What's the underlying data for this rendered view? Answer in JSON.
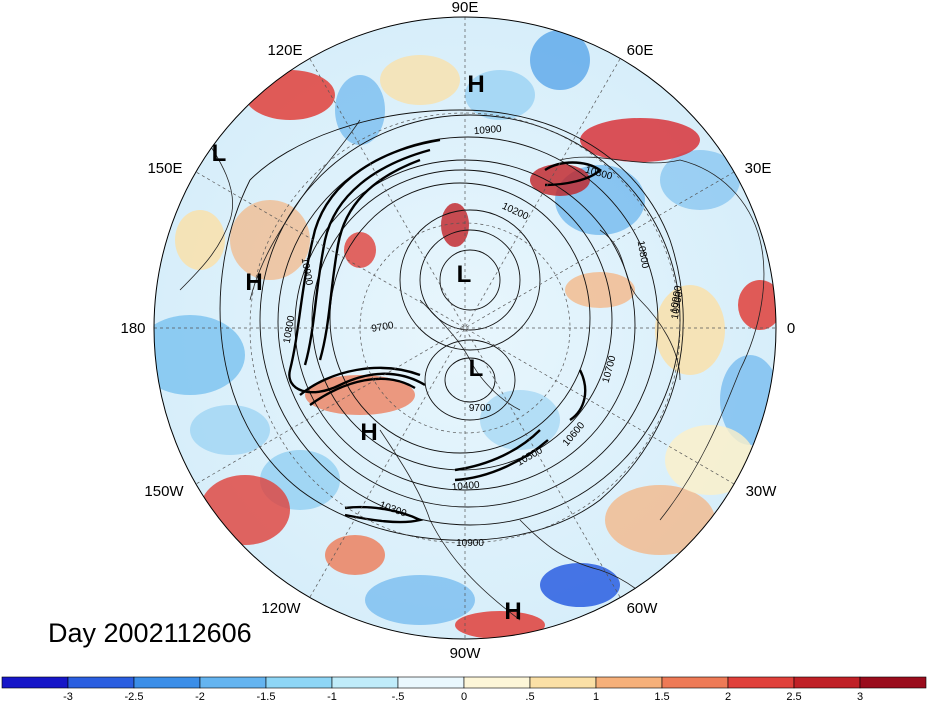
{
  "title": "Day 2002112606",
  "longitude_labels": [
    "90E",
    "60E",
    "30E",
    "0",
    "30W",
    "60W",
    "90W",
    "120W",
    "150W",
    "180",
    "150E",
    "120E"
  ],
  "pressure_systems": [
    {
      "type": "H",
      "region": "siberia"
    },
    {
      "type": "L",
      "region": "east-asia"
    },
    {
      "type": "H",
      "region": "north-pacific"
    },
    {
      "type": "L",
      "region": "arctic"
    },
    {
      "type": "L",
      "region": "canadian-arctic"
    },
    {
      "type": "H",
      "region": "alaska"
    },
    {
      "type": "H",
      "region": "south-america"
    }
  ],
  "contour_labels": [
    "10900",
    "10800",
    "10200",
    "10800",
    "10900",
    "10900",
    "10800",
    "9700",
    "9700",
    "10700",
    "10600",
    "10500",
    "10400",
    "10300",
    "10900",
    "10900"
  ],
  "colorbar": {
    "tick_labels": [
      "-3",
      "-2.5",
      "-2",
      "-1.5",
      "-1",
      "-.5",
      "0",
      ".5",
      "1",
      "1.5",
      "2",
      "2.5",
      "3"
    ],
    "colors": [
      "#1616c8",
      "#2a5ee0",
      "#3b8ee8",
      "#64b4f0",
      "#8ed6f6",
      "#c0ecfa",
      "#eaf8fe",
      "#fdf6d8",
      "#fbe0a6",
      "#f6b07a",
      "#ee7a56",
      "#e0403a",
      "#c02026",
      "#9a0c1c"
    ]
  }
}
